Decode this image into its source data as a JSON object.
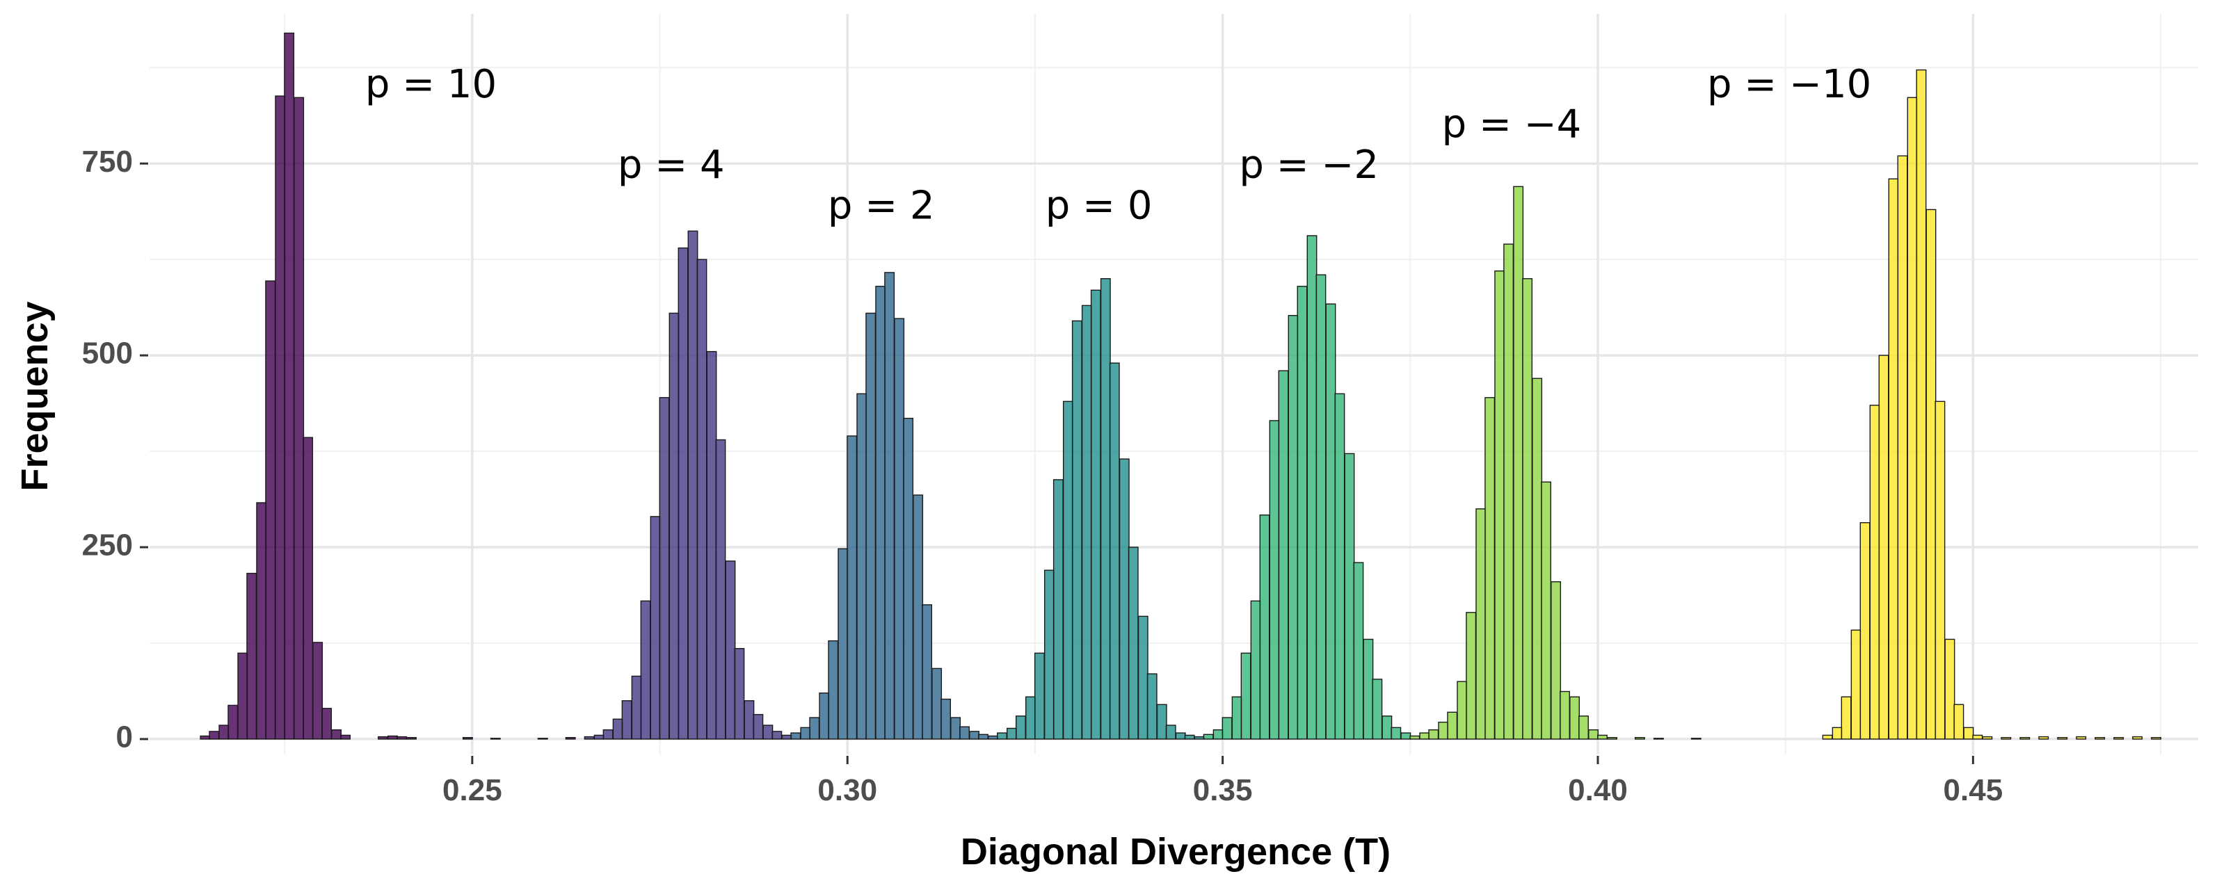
{
  "chart_data": {
    "type": "bar",
    "title": "",
    "xlabel": "Diagonal Divergence (T)",
    "ylabel": "Frequency",
    "xlim": [
      0.207,
      0.48
    ],
    "ylim": [
      -20,
      945
    ],
    "bin_width": 0.00125,
    "grid": true,
    "legend": "none",
    "x_ticks": [
      {
        "value": 0.25,
        "label": "0.25"
      },
      {
        "value": 0.3,
        "label": "0.30"
      },
      {
        "value": 0.35,
        "label": "0.35"
      },
      {
        "value": 0.4,
        "label": "0.40"
      },
      {
        "value": 0.45,
        "label": "0.45"
      }
    ],
    "y_ticks": [
      {
        "value": 0,
        "label": "0"
      },
      {
        "value": 250,
        "label": "250"
      },
      {
        "value": 500,
        "label": "500"
      },
      {
        "value": 750,
        "label": "750"
      }
    ],
    "series": [
      {
        "p": "10",
        "color": "#440154",
        "bins": [
          [
            0.2144,
            4
          ],
          [
            0.2156,
            10
          ],
          [
            0.2169,
            18
          ],
          [
            0.2181,
            44
          ],
          [
            0.2194,
            112
          ],
          [
            0.2206,
            216
          ],
          [
            0.2219,
            308
          ],
          [
            0.2231,
            597
          ],
          [
            0.2244,
            838
          ],
          [
            0.2256,
            920
          ],
          [
            0.2269,
            836
          ],
          [
            0.2281,
            393
          ],
          [
            0.2294,
            126
          ],
          [
            0.2306,
            40
          ],
          [
            0.2319,
            12
          ],
          [
            0.2331,
            5
          ],
          [
            0.2381,
            3
          ],
          [
            0.2394,
            4
          ],
          [
            0.2406,
            3
          ],
          [
            0.2419,
            2
          ],
          [
            0.2494,
            2
          ],
          [
            0.2531,
            1
          ],
          [
            0.2594,
            1
          ],
          [
            0.2631,
            2
          ]
        ]
      },
      {
        "p": "4",
        "color": "#443983",
        "bins": [
          [
            0.2656,
            3
          ],
          [
            0.2669,
            5
          ],
          [
            0.2681,
            12
          ],
          [
            0.2694,
            26
          ],
          [
            0.2706,
            50
          ],
          [
            0.2719,
            82
          ],
          [
            0.2731,
            180
          ],
          [
            0.2744,
            290
          ],
          [
            0.2756,
            445
          ],
          [
            0.2769,
            555
          ],
          [
            0.2781,
            640
          ],
          [
            0.2794,
            662
          ],
          [
            0.2806,
            625
          ],
          [
            0.2819,
            505
          ],
          [
            0.2831,
            390
          ],
          [
            0.2844,
            232
          ],
          [
            0.2856,
            118
          ],
          [
            0.2869,
            50
          ],
          [
            0.2881,
            32
          ],
          [
            0.2894,
            18
          ],
          [
            0.2906,
            10
          ],
          [
            0.2919,
            5
          ]
        ]
      },
      {
        "p": "2",
        "color": "#31688E",
        "bins": [
          [
            0.2931,
            8
          ],
          [
            0.2944,
            15
          ],
          [
            0.2956,
            28
          ],
          [
            0.2969,
            60
          ],
          [
            0.2981,
            128
          ],
          [
            0.2994,
            248
          ],
          [
            0.3006,
            395
          ],
          [
            0.3019,
            450
          ],
          [
            0.3031,
            555
          ],
          [
            0.3044,
            590
          ],
          [
            0.3056,
            608
          ],
          [
            0.3069,
            548
          ],
          [
            0.3081,
            418
          ],
          [
            0.3094,
            318
          ],
          [
            0.3106,
            175
          ],
          [
            0.3119,
            92
          ],
          [
            0.3131,
            52
          ],
          [
            0.3144,
            28
          ],
          [
            0.3156,
            16
          ],
          [
            0.3169,
            10
          ],
          [
            0.3181,
            6
          ],
          [
            0.3194,
            4
          ]
        ]
      },
      {
        "p": "0",
        "color": "#21908C",
        "bins": [
          [
            0.3206,
            8
          ],
          [
            0.3219,
            14
          ],
          [
            0.3231,
            30
          ],
          [
            0.3244,
            55
          ],
          [
            0.3256,
            112
          ],
          [
            0.3269,
            220
          ],
          [
            0.3281,
            338
          ],
          [
            0.3294,
            440
          ],
          [
            0.3306,
            545
          ],
          [
            0.3319,
            565
          ],
          [
            0.3331,
            585
          ],
          [
            0.3344,
            600
          ],
          [
            0.3356,
            490
          ],
          [
            0.3369,
            365
          ],
          [
            0.3381,
            250
          ],
          [
            0.3394,
            160
          ],
          [
            0.3406,
            85
          ],
          [
            0.3419,
            45
          ],
          [
            0.3431,
            18
          ],
          [
            0.3444,
            8
          ],
          [
            0.3456,
            5
          ],
          [
            0.3469,
            3
          ]
        ]
      },
      {
        "p": "−2",
        "color": "#35B779",
        "bins": [
          [
            0.3481,
            6
          ],
          [
            0.3494,
            12
          ],
          [
            0.3506,
            28
          ],
          [
            0.3519,
            55
          ],
          [
            0.3531,
            112
          ],
          [
            0.3544,
            180
          ],
          [
            0.3556,
            292
          ],
          [
            0.3569,
            415
          ],
          [
            0.3581,
            480
          ],
          [
            0.3594,
            552
          ],
          [
            0.3606,
            590
          ],
          [
            0.3619,
            656
          ],
          [
            0.3631,
            605
          ],
          [
            0.3644,
            567
          ],
          [
            0.3656,
            450
          ],
          [
            0.3669,
            372
          ],
          [
            0.3681,
            230
          ],
          [
            0.3694,
            130
          ],
          [
            0.3706,
            78
          ],
          [
            0.3719,
            30
          ],
          [
            0.3731,
            15
          ],
          [
            0.3744,
            8
          ]
        ]
      },
      {
        "p": "−4",
        "color": "#8FD744",
        "bins": [
          [
            0.3756,
            4
          ],
          [
            0.3769,
            8
          ],
          [
            0.3781,
            12
          ],
          [
            0.3794,
            22
          ],
          [
            0.3806,
            35
          ],
          [
            0.3819,
            75
          ],
          [
            0.3831,
            165
          ],
          [
            0.3844,
            300
          ],
          [
            0.3856,
            445
          ],
          [
            0.3869,
            610
          ],
          [
            0.3881,
            645
          ],
          [
            0.3894,
            720
          ],
          [
            0.3906,
            600
          ],
          [
            0.3919,
            470
          ],
          [
            0.3931,
            335
          ],
          [
            0.3944,
            205
          ],
          [
            0.3956,
            62
          ],
          [
            0.3969,
            55
          ],
          [
            0.3981,
            30
          ],
          [
            0.3994,
            12
          ],
          [
            0.4006,
            5
          ],
          [
            0.4019,
            2
          ],
          [
            0.4056,
            2
          ],
          [
            0.4081,
            1
          ],
          [
            0.4131,
            1
          ]
        ]
      },
      {
        "p": "−10",
        "color": "#FDE725",
        "bins": [
          [
            0.4306,
            5
          ],
          [
            0.4319,
            15
          ],
          [
            0.4331,
            55
          ],
          [
            0.4344,
            142
          ],
          [
            0.4356,
            282
          ],
          [
            0.4369,
            435
          ],
          [
            0.4381,
            500
          ],
          [
            0.4394,
            730
          ],
          [
            0.4406,
            760
          ],
          [
            0.4419,
            836
          ],
          [
            0.4431,
            872
          ],
          [
            0.4444,
            690
          ],
          [
            0.4456,
            440
          ],
          [
            0.4469,
            130
          ],
          [
            0.4481,
            45
          ],
          [
            0.4494,
            15
          ],
          [
            0.4506,
            5
          ],
          [
            0.4519,
            3
          ],
          [
            0.4544,
            2
          ],
          [
            0.4569,
            2
          ],
          [
            0.4594,
            3
          ],
          [
            0.4619,
            2
          ],
          [
            0.4644,
            3
          ],
          [
            0.4669,
            2
          ],
          [
            0.4694,
            2
          ],
          [
            0.4719,
            3
          ],
          [
            0.4744,
            2
          ]
        ]
      }
    ],
    "annotations": [
      {
        "text": "p = 10",
        "x": 0.2445,
        "y": 850
      },
      {
        "text": "p = 4",
        "x": 0.2765,
        "y": 745
      },
      {
        "text": "p = 2",
        "x": 0.3045,
        "y": 692
      },
      {
        "text": "p = 0",
        "x": 0.3335,
        "y": 692
      },
      {
        "text": "p = −2",
        "x": 0.3615,
        "y": 745
      },
      {
        "text": "p = −4",
        "x": 0.3885,
        "y": 798
      },
      {
        "text": "p = −10",
        "x": 0.4255,
        "y": 850
      }
    ]
  }
}
